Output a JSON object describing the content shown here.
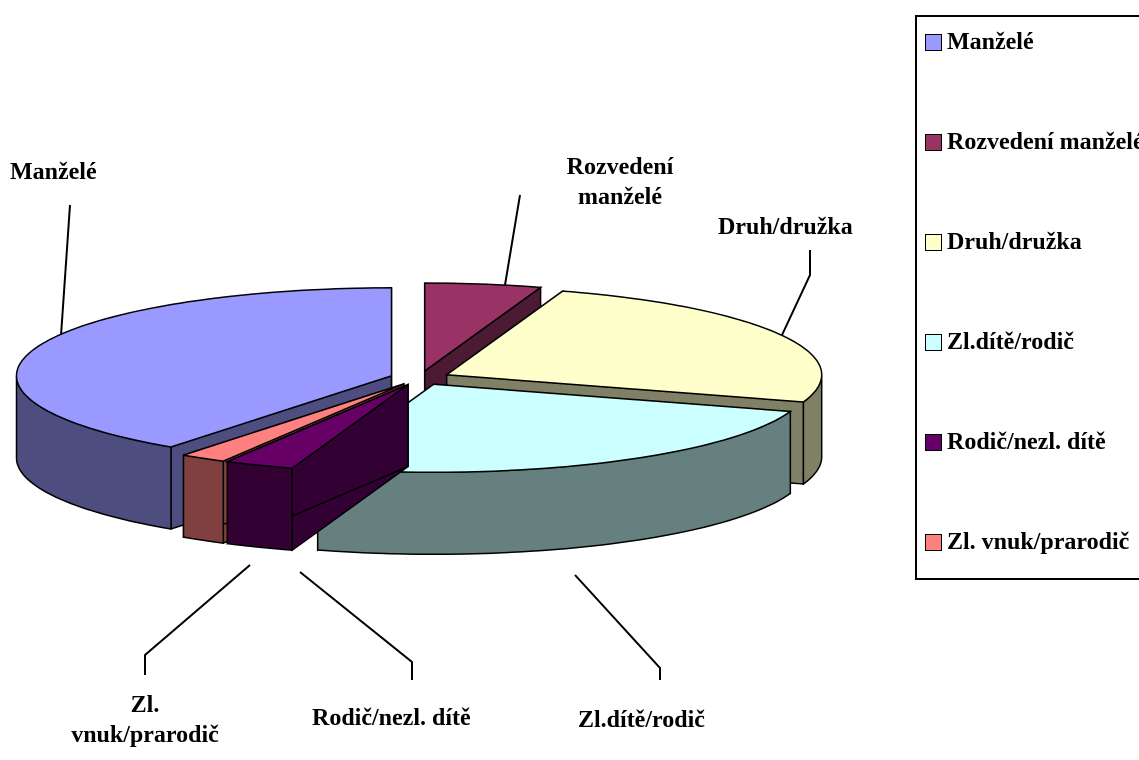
{
  "chart_data": {
    "type": "pie3d",
    "categories": [
      "Manželé",
      "Rozvedení manželé",
      "Druh/družka",
      "Zl.dítě/rodič",
      "Rodič/nezl. dítě",
      "Zl. vnuk/prarodič"
    ],
    "values": [
      40,
      5,
      25,
      25,
      3,
      2
    ],
    "colors": [
      "#9999ff",
      "#993366",
      "#ffffcc",
      "#ccffff",
      "#660066",
      "#ff8080"
    ],
    "legend": "right"
  }
}
